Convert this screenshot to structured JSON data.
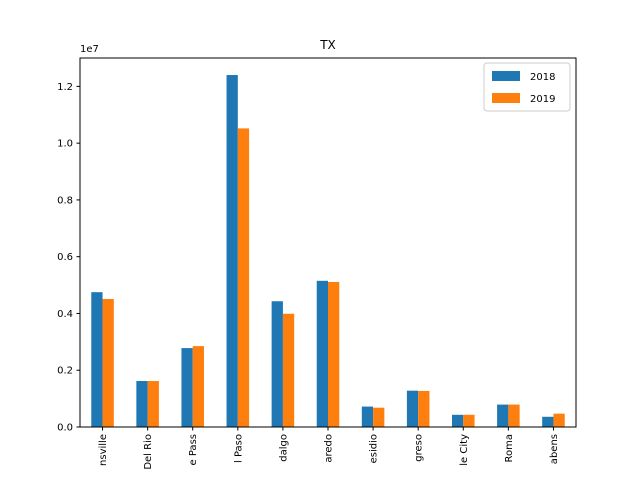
{
  "chart_data": {
    "type": "bar",
    "title": "TX",
    "xlabel": "",
    "ylabel": "",
    "y_offset_label": "1e7",
    "ylim": [
      0,
      13000000
    ],
    "y_ticks": [
      0,
      2000000,
      4000000,
      6000000,
      8000000,
      10000000,
      12000000
    ],
    "y_tick_labels": [
      "0.0",
      "0.2",
      "0.4",
      "0.6",
      "0.8",
      "1.0",
      "1.2"
    ],
    "categories": [
      "nsville",
      "Del Rio",
      "e Pass",
      "l Paso",
      "dalgo",
      "aredo",
      "esidio",
      "greso",
      "le City",
      "Roma",
      "abens"
    ],
    "series": [
      {
        "name": "2018",
        "color": "#1f77b4",
        "values": [
          4750000,
          1620000,
          2780000,
          12400000,
          4430000,
          5150000,
          720000,
          1280000,
          430000,
          790000,
          360000
        ]
      },
      {
        "name": "2019",
        "color": "#ff7f0e",
        "values": [
          4510000,
          1620000,
          2850000,
          10520000,
          3990000,
          5110000,
          680000,
          1270000,
          430000,
          790000,
          470000
        ]
      }
    ],
    "grid": false,
    "legend": "top-right"
  }
}
